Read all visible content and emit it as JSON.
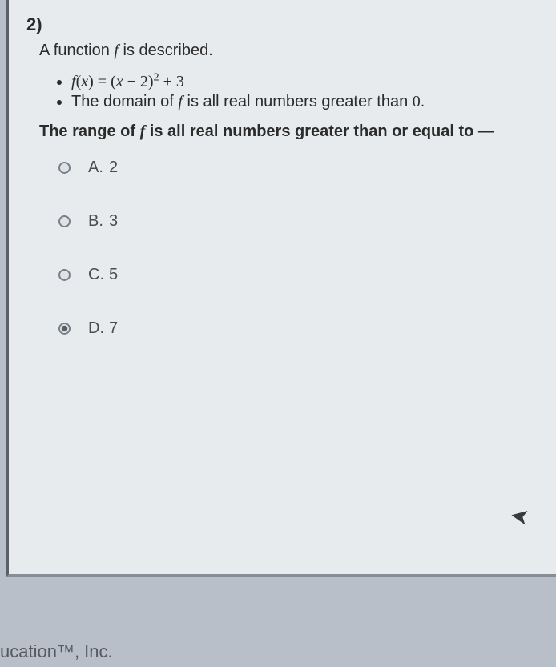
{
  "question": {
    "number": "2)",
    "stem_prefix": "A function ",
    "stem_var": "f",
    "stem_suffix": " is described.",
    "bullets": {
      "eq_lhs_var": "f",
      "eq_lhs_arg": "x",
      "eq_rhs_base_l": "(",
      "eq_rhs_base_var": "x",
      "eq_rhs_base_rest": " − 2)",
      "eq_rhs_exp": "2",
      "eq_rhs_tail": " + 3",
      "domain_prefix": "The domain of ",
      "domain_var": "f",
      "domain_suffix": " is all real numbers greater than ",
      "domain_zero": "0",
      "domain_period": "."
    },
    "prompt_prefix": "The range of ",
    "prompt_var": "f",
    "prompt_suffix": " is all real numbers greater than or equal to —"
  },
  "choices": [
    {
      "letter": "A.",
      "value": "2",
      "checked": false
    },
    {
      "letter": "B.",
      "value": "3",
      "checked": false
    },
    {
      "letter": "C.",
      "value": "5",
      "checked": false
    },
    {
      "letter": "D.",
      "value": "7",
      "checked": true
    }
  ],
  "footer": "ucation™, Inc.",
  "colors": {
    "page_bg": "#e8ebed",
    "outer_bg": "#b8bfc8",
    "text": "#2b2b2b",
    "muted": "#4a4d50",
    "border": "#5a5f66"
  }
}
